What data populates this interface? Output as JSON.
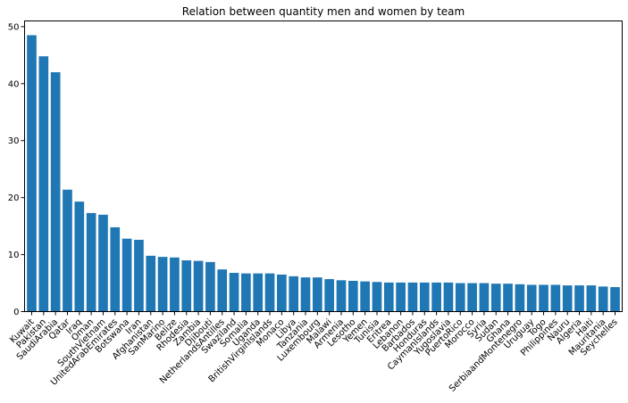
{
  "chart_data": {
    "type": "bar",
    "title": "Relation between quantity men and women by team",
    "xlabel": "",
    "ylabel": "",
    "ylim": [
      0,
      51
    ],
    "yticks": [
      0,
      10,
      20,
      30,
      40,
      50
    ],
    "grid": false,
    "bar_color": "#1f77b4",
    "categories": [
      "Kuwait",
      "Pakistan",
      "SaudiArabia",
      "Qatar",
      "Iraq",
      "Oman",
      "SouthVietnam",
      "UnitedArabEmirates",
      "Botswana",
      "Iran",
      "Afghanistan",
      "SanMarino",
      "Belize",
      "Rhodesia",
      "Zambia",
      "Djibouti",
      "NetherlandsAntilles",
      "Swaziland",
      "Somalia",
      "Uganda",
      "BritishVirginIslands",
      "Monaco",
      "Libya",
      "Tanzania",
      "Luxembourg",
      "Malawi",
      "Armenia",
      "Lesotho",
      "Yemen",
      "Tunisia",
      "Eritrea",
      "Lebanon",
      "Barbados",
      "Honduras",
      "CaymanIslands",
      "Yugoslavia",
      "PuertoRico",
      "Morocco",
      "Syria",
      "Sudan",
      "Ghana",
      "SerbiaandMontenegro",
      "Uruguay",
      "Togo",
      "Philippines",
      "Nauru",
      "Algeria",
      "Haiti",
      "Mauritania",
      "Seychelles"
    ],
    "values": [
      48.5,
      44.8,
      42.0,
      21.4,
      19.3,
      17.3,
      17.0,
      14.8,
      12.8,
      12.6,
      9.8,
      9.6,
      9.5,
      9.0,
      8.9,
      8.7,
      7.4,
      6.8,
      6.7,
      6.7,
      6.7,
      6.5,
      6.2,
      6.0,
      6.0,
      5.7,
      5.5,
      5.4,
      5.3,
      5.2,
      5.1,
      5.1,
      5.1,
      5.1,
      5.1,
      5.1,
      5.0,
      5.0,
      5.0,
      4.9,
      4.9,
      4.8,
      4.7,
      4.7,
      4.7,
      4.6,
      4.6,
      4.6,
      4.4,
      4.3
    ]
  }
}
